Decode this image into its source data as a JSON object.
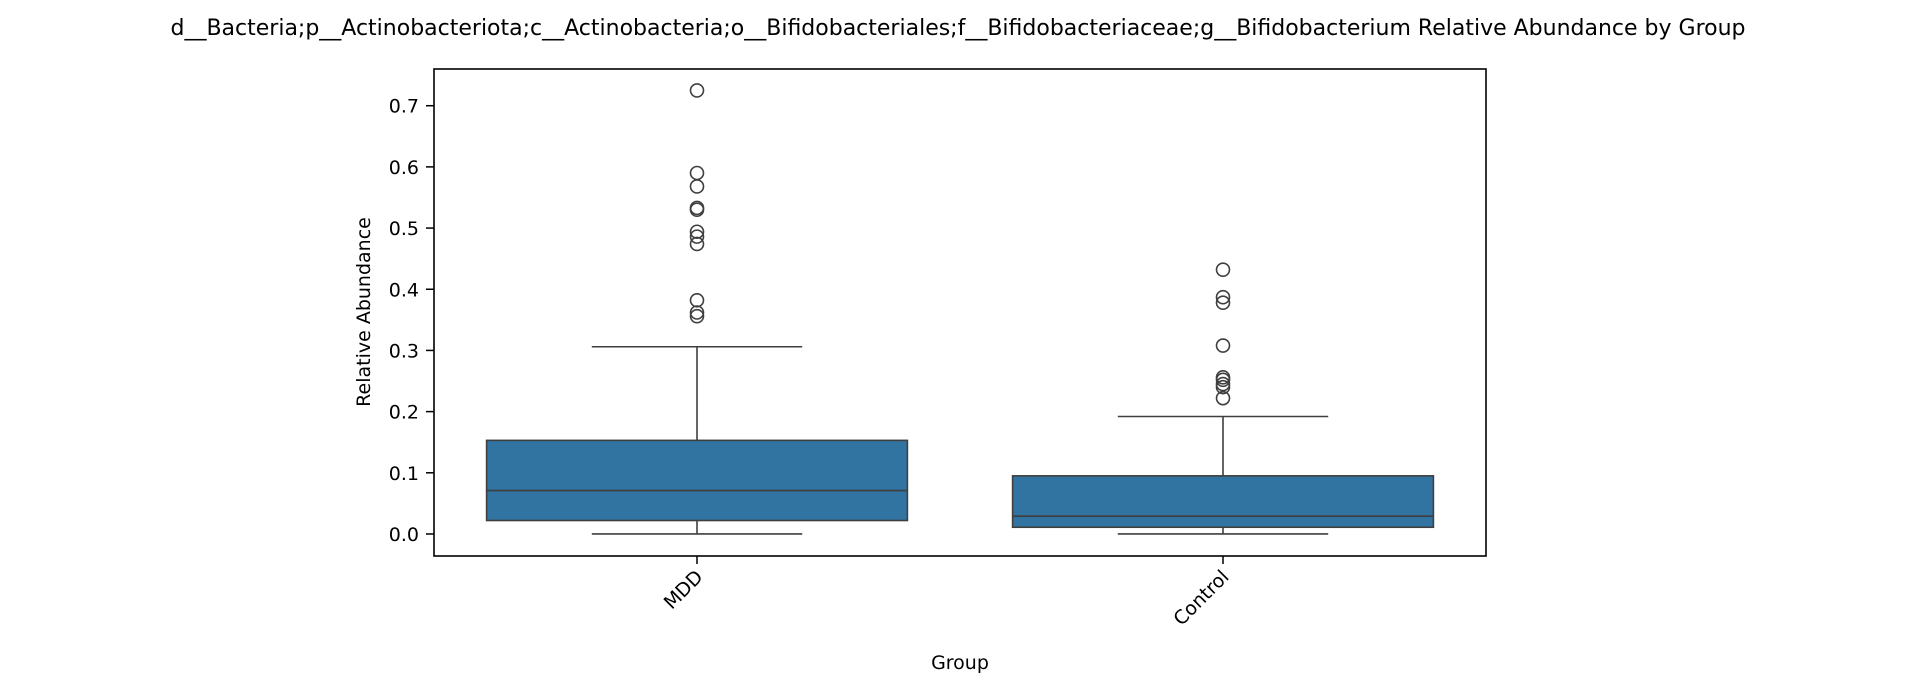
{
  "chart_data": {
    "type": "box",
    "title": "d__Bacteria;p__Actinobacteriota;c__Actinobacteria;o__Bifidobacteriales;f__Bifidobacteriaceae;g__Bifidobacterium Relative Abundance by Group",
    "xlabel": "Group",
    "ylabel": "Relative Abundance",
    "categories": [
      "MDD",
      "Control"
    ],
    "ylim": [
      -0.036,
      0.76
    ],
    "yticks": [
      0.0,
      0.1,
      0.2,
      0.3,
      0.4,
      0.5,
      0.6,
      0.7
    ],
    "ytick_labels": [
      "0.0",
      "0.1",
      "0.2",
      "0.3",
      "0.4",
      "0.5",
      "0.6",
      "0.7"
    ],
    "grid": false,
    "box_color": "#3274a1",
    "line_color": "#3f3f3f",
    "boxes": [
      {
        "category": "MDD",
        "whisker_low": 0.0,
        "q1": 0.022,
        "median": 0.071,
        "q3": 0.153,
        "whisker_high": 0.306,
        "outliers": [
          0.725,
          0.59,
          0.568,
          0.533,
          0.53,
          0.494,
          0.486,
          0.474,
          0.382,
          0.362,
          0.356
        ]
      },
      {
        "category": "Control",
        "whisker_low": 0.0,
        "q1": 0.011,
        "median": 0.029,
        "q3": 0.095,
        "whisker_high": 0.192,
        "outliers": [
          0.432,
          0.387,
          0.378,
          0.308,
          0.256,
          0.252,
          0.245,
          0.24,
          0.222
        ]
      }
    ]
  }
}
